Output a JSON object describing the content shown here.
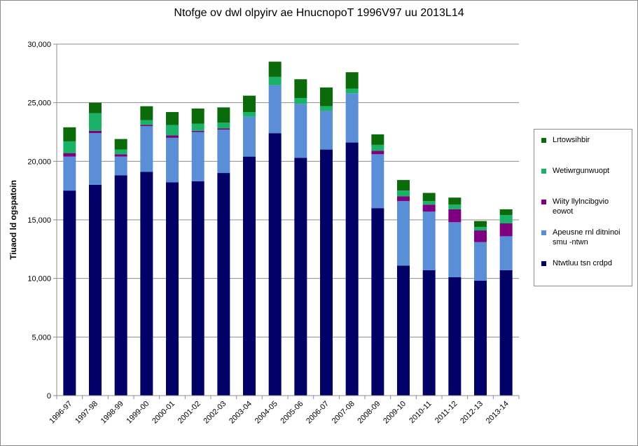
{
  "chart_data": {
    "type": "bar",
    "stacked": true,
    "title": "Ntofge ov dwl olpyirv ae HnucnopoT 1996V97 uu 2013L14",
    "xlabel": "",
    "ylabel": "Tiuaod ld ogspatoin",
    "ylim": [
      0,
      30000
    ],
    "yticks": [
      "0",
      "5,000",
      "10,000",
      "15,000",
      "20,000",
      "25,000",
      "30,000"
    ],
    "ytick_values": [
      0,
      5000,
      10000,
      15000,
      20000,
      25000,
      30000
    ],
    "grid": true,
    "legend_position": "right",
    "categories": [
      "1996-97",
      "1997-98",
      "1998-99",
      "1999-00",
      "2000-01",
      "2001-02",
      "2002-03",
      "2003-04",
      "2004-05",
      "2005-06",
      "2006-07",
      "2007-08",
      "2008-09",
      "2009-10",
      "2010-11",
      "2011-12",
      "2012-13",
      "2013-14"
    ],
    "series": [
      {
        "name": "Ntwtluu tsn crdpd",
        "color": "#000066",
        "values": [
          17500,
          18000,
          18800,
          19100,
          18200,
          18300,
          19000,
          20400,
          22400,
          20300,
          21000,
          21600,
          16000,
          11100,
          10700,
          10100,
          9800,
          10700
        ]
      },
      {
        "name": "Apeusne rnl ditninoi smu -ntwn",
        "color": "#5a8fd8",
        "values": [
          2900,
          4400,
          1600,
          3900,
          3800,
          4200,
          3700,
          3400,
          4100,
          4600,
          3300,
          4200,
          4600,
          5500,
          5000,
          4700,
          3300,
          2900
        ]
      },
      {
        "name": "Wiity llylncibgvio eowot",
        "color": "#7f007f",
        "values": [
          300,
          200,
          200,
          100,
          200,
          100,
          100,
          0,
          0,
          0,
          0,
          0,
          300,
          400,
          600,
          1100,
          1000,
          1100
        ]
      },
      {
        "name": "Wetiwrgunwuopt",
        "color": "#1ab267",
        "values": [
          1000,
          1500,
          400,
          400,
          900,
          600,
          500,
          400,
          700,
          500,
          400,
          400,
          500,
          500,
          300,
          400,
          300,
          700
        ]
      },
      {
        "name": "Lrtowsihbir",
        "color": "#0b6b0b",
        "values": [
          1200,
          900,
          900,
          1200,
          1100,
          1300,
          1300,
          1400,
          1300,
          1600,
          1600,
          1400,
          900,
          900,
          700,
          600,
          500,
          500
        ]
      }
    ]
  },
  "legend_order": [
    4,
    3,
    2,
    1,
    0
  ]
}
